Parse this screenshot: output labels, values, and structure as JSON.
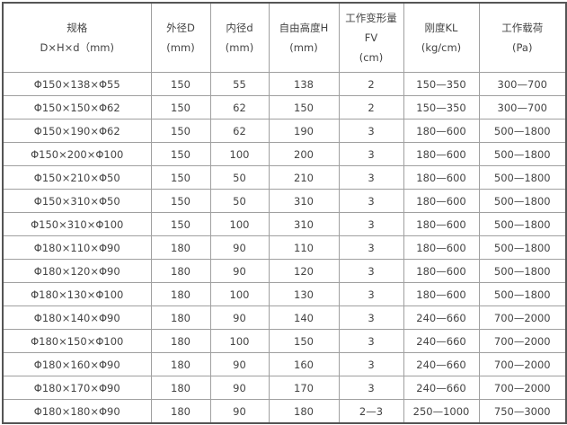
{
  "headers": [
    [
      "规格",
      "D×H×d（mm)"
    ],
    [
      "外径D",
      "(mm)"
    ],
    [
      "内径d",
      "(mm)"
    ],
    [
      "自由高度H",
      "(mm)"
    ],
    [
      "工作变形量",
      "FV",
      "(cm)"
    ],
    [
      "刚度KL",
      "(kg/cm)"
    ],
    [
      "工作载荷",
      "(Pa)"
    ]
  ],
  "rows": [
    [
      "Φ150×138×Φ55",
      "150",
      "55",
      "138",
      "2",
      "150—350",
      "300—700"
    ],
    [
      "Φ150×150×Φ62",
      "150",
      "62",
      "150",
      "2",
      "150—350",
      "300—700"
    ],
    [
      "Φ150×190×Φ62",
      "150",
      "62",
      "190",
      "3",
      "180—600",
      "500—1800"
    ],
    [
      "Φ150×200×Φ100",
      "150",
      "100",
      "200",
      "3",
      "180—600",
      "500—1800"
    ],
    [
      "Φ150×210×Φ50",
      "150",
      "50",
      "210",
      "3",
      "180—600",
      "500—1800"
    ],
    [
      "Φ150×310×Φ50",
      "150",
      "50",
      "310",
      "3",
      "180—600",
      "500—1800"
    ],
    [
      "Φ150×310×Φ100",
      "150",
      "100",
      "310",
      "3",
      "180—600",
      "500—1800"
    ],
    [
      "Φ180×110×Φ90",
      "180",
      "90",
      "110",
      "3",
      "180—600",
      "500—1800"
    ],
    [
      "Φ180×120×Φ90",
      "180",
      "90",
      "120",
      "3",
      "180—600",
      "500—1800"
    ],
    [
      "Φ180×130×Φ100",
      "180",
      "100",
      "130",
      "3",
      "180—600",
      "500—1800"
    ],
    [
      "Φ180×140×Φ90",
      "180",
      "90",
      "140",
      "3",
      "240—660",
      "700—2000"
    ],
    [
      "Φ180×150×Φ100",
      "180",
      "100",
      "150",
      "3",
      "240—660",
      "700—2000"
    ],
    [
      "Φ180×160×Φ90",
      "180",
      "90",
      "160",
      "3",
      "240—660",
      "700—2000"
    ],
    [
      "Φ180×170×Φ90",
      "180",
      "90",
      "170",
      "3",
      "240—660",
      "700—2000"
    ],
    [
      "Φ180×180×Φ90",
      "180",
      "90",
      "180",
      "2—3",
      "250—1000",
      "750—3000"
    ]
  ]
}
